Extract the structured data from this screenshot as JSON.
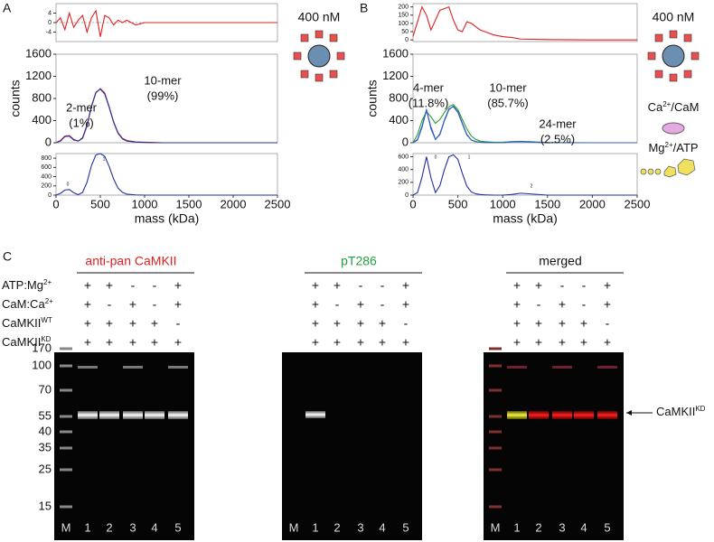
{
  "chart_data": [
    {
      "type": "line",
      "panel": "A",
      "role": "residual",
      "xlim": [
        0,
        2500
      ],
      "ylim": [
        -8,
        8
      ],
      "yticks": [
        -4,
        0,
        4
      ],
      "zero_line": true,
      "x": [
        0,
        50,
        100,
        150,
        200,
        250,
        300,
        350,
        400,
        450,
        500,
        550,
        600,
        650,
        700,
        750,
        800,
        900,
        1000,
        1100,
        1200,
        1500,
        2000,
        2500
      ],
      "series": [
        {
          "color": "#e02020",
          "values": [
            0,
            2,
            -3,
            4,
            -2,
            1,
            3,
            -4,
            2,
            5,
            -6,
            3,
            2,
            -1,
            1,
            0,
            1,
            -1,
            0,
            0,
            0,
            0,
            0,
            0
          ]
        }
      ]
    },
    {
      "type": "line",
      "panel": "A",
      "role": "main",
      "xlim": [
        0,
        2500
      ],
      "ylim": [
        0,
        1600
      ],
      "yticks": [
        0,
        400,
        800,
        1200,
        1600
      ],
      "ylabel": "counts",
      "x": [
        0,
        50,
        100,
        150,
        200,
        250,
        300,
        350,
        400,
        450,
        500,
        550,
        600,
        650,
        700,
        750,
        800,
        900,
        1000,
        1100,
        1200,
        1500,
        2000,
        2500
      ],
      "series": [
        {
          "color": "#e02020",
          "values": [
            0,
            40,
            120,
            130,
            60,
            30,
            80,
            300,
            650,
            900,
            980,
            900,
            650,
            380,
            180,
            80,
            40,
            15,
            10,
            5,
            0,
            0,
            0,
            0
          ]
        },
        {
          "color": "#2030a0",
          "values": [
            0,
            30,
            110,
            120,
            50,
            30,
            90,
            320,
            660,
            910,
            970,
            880,
            640,
            370,
            170,
            70,
            30,
            10,
            5,
            0,
            0,
            0,
            0,
            0
          ]
        }
      ],
      "annotations": [
        [
          "2-mer",
          "(1%)"
        ],
        [
          "10-mer",
          "(99%)"
        ]
      ]
    },
    {
      "type": "line",
      "panel": "A",
      "role": "components",
      "xlim": [
        0,
        2500
      ],
      "ylim": [
        0,
        900
      ],
      "yticks": [
        0,
        200,
        400,
        600,
        800
      ],
      "xticks": [
        0,
        500,
        1000,
        1500,
        2000,
        2500
      ],
      "xlabel": "mass (kDa)",
      "x": [
        0,
        50,
        100,
        150,
        200,
        250,
        300,
        350,
        400,
        450,
        500,
        550,
        600,
        650,
        700,
        750,
        800,
        900,
        1000,
        1100,
        1200,
        1500,
        2000,
        2500
      ],
      "series": [
        {
          "color": "#2030a0",
          "values": [
            0,
            40,
            110,
            120,
            50,
            10,
            60,
            280,
            640,
            870,
            900,
            840,
            620,
            350,
            150,
            60,
            20,
            5,
            0,
            0,
            0,
            0,
            0,
            0
          ]
        }
      ],
      "peak_labels": [
        "0",
        "1"
      ]
    },
    {
      "type": "line",
      "panel": "B",
      "role": "residual",
      "xlim": [
        0,
        2500
      ],
      "ylim": [
        -10,
        220
      ],
      "yticks": [
        0,
        50,
        100,
        150,
        200
      ],
      "x": [
        0,
        50,
        100,
        150,
        200,
        250,
        300,
        350,
        400,
        450,
        500,
        550,
        600,
        650,
        700,
        750,
        800,
        900,
        1000,
        1100,
        1200,
        1500,
        2000,
        2500
      ],
      "series": [
        {
          "color": "#e02020",
          "values": [
            20,
            110,
            200,
            150,
            60,
            120,
            180,
            190,
            200,
            120,
            60,
            50,
            110,
            100,
            80,
            60,
            50,
            30,
            20,
            15,
            5,
            2,
            0,
            0
          ]
        }
      ]
    },
    {
      "type": "line",
      "panel": "B",
      "role": "main",
      "xlim": [
        0,
        2500
      ],
      "ylim": [
        0,
        1600
      ],
      "yticks": [
        0,
        400,
        800,
        1200,
        1600
      ],
      "ylabel": "counts",
      "x": [
        0,
        50,
        100,
        150,
        200,
        250,
        300,
        350,
        400,
        450,
        500,
        550,
        600,
        650,
        700,
        750,
        800,
        900,
        1000,
        1100,
        1200,
        1500,
        2000,
        2500
      ],
      "series": [
        {
          "color": "#2aa02a",
          "values": [
            0,
            150,
            400,
            560,
            470,
            350,
            420,
            550,
            650,
            690,
            600,
            420,
            250,
            120,
            60,
            30,
            20,
            10,
            10,
            20,
            25,
            5,
            0,
            0
          ]
        },
        {
          "color": "#2030a0",
          "values": [
            0,
            50,
            280,
            590,
            280,
            60,
            150,
            400,
            600,
            660,
            560,
            350,
            150,
            50,
            20,
            10,
            5,
            0,
            0,
            15,
            20,
            0,
            0,
            0
          ]
        },
        {
          "color": "#3060d0",
          "values": [
            0,
            60,
            300,
            600,
            250,
            60,
            160,
            410,
            610,
            650,
            550,
            340,
            140,
            50,
            20,
            10,
            5,
            0,
            0,
            15,
            20,
            0,
            0,
            0
          ]
        }
      ],
      "annotations": [
        [
          "4-mer",
          "(11.8%)"
        ],
        [
          "10-mer",
          "(85.7%)"
        ],
        [
          "24-mer",
          "(2.5%)"
        ]
      ]
    },
    {
      "type": "line",
      "panel": "B",
      "role": "components",
      "xlim": [
        0,
        2500
      ],
      "ylim": [
        0,
        650
      ],
      "yticks": [
        0,
        200,
        400,
        600
      ],
      "xticks": [
        0,
        500,
        1000,
        1500,
        2000,
        2500
      ],
      "xlabel": "mass (kDa)",
      "x": [
        0,
        50,
        100,
        150,
        200,
        250,
        300,
        350,
        400,
        450,
        500,
        550,
        600,
        650,
        700,
        750,
        800,
        900,
        1000,
        1100,
        1200,
        1500,
        2000,
        2500
      ],
      "series": [
        {
          "color": "#2030a0",
          "values": [
            0,
            40,
            280,
            600,
            270,
            40,
            150,
            400,
            600,
            630,
            560,
            340,
            140,
            50,
            20,
            10,
            5,
            0,
            0,
            10,
            30,
            0,
            0,
            0
          ]
        }
      ],
      "peak_labels": [
        "0",
        "1",
        "2"
      ]
    }
  ],
  "panel_A": {
    "letter": "A",
    "concentration": "400 nM"
  },
  "panel_B": {
    "letter": "B",
    "concentration": "400 nM",
    "legend": [
      {
        "text": "Ca",
        "sup": "2+",
        "rest": "/CaM"
      },
      {
        "text": "Mg",
        "sup": "2+",
        "rest": "/ATP"
      }
    ]
  },
  "panel_C": {
    "letter": "C",
    "conditions": [
      {
        "label": "ATP:Mg",
        "sup": "2+",
        "signs": [
          "+",
          "+",
          "-",
          "-",
          "+"
        ]
      },
      {
        "label": "CaM:Ca",
        "sup": "2+",
        "signs": [
          "+",
          "-",
          "+",
          "-",
          "+"
        ]
      },
      {
        "label": "CaMKII",
        "sup": "WT",
        "signs": [
          "+",
          "+",
          "+",
          "+",
          "-"
        ]
      },
      {
        "label": "CaMKII",
        "sup": "KD",
        "signs": [
          "+",
          "+",
          "+",
          "+",
          "+"
        ]
      }
    ],
    "gels": [
      {
        "title": "anti-pan CaMKII",
        "color": "#e02020"
      },
      {
        "title": "pT286",
        "color": "#20a040"
      },
      {
        "title": "merged",
        "color": "#111111"
      }
    ],
    "lanes": [
      "M",
      "1",
      "2",
      "3",
      "4",
      "5"
    ],
    "markers": [
      "170",
      "100",
      "70",
      "55",
      "40",
      "35",
      "25",
      "15"
    ],
    "arrow_label": {
      "label": "CaMKII",
      "sup": "KD"
    }
  }
}
